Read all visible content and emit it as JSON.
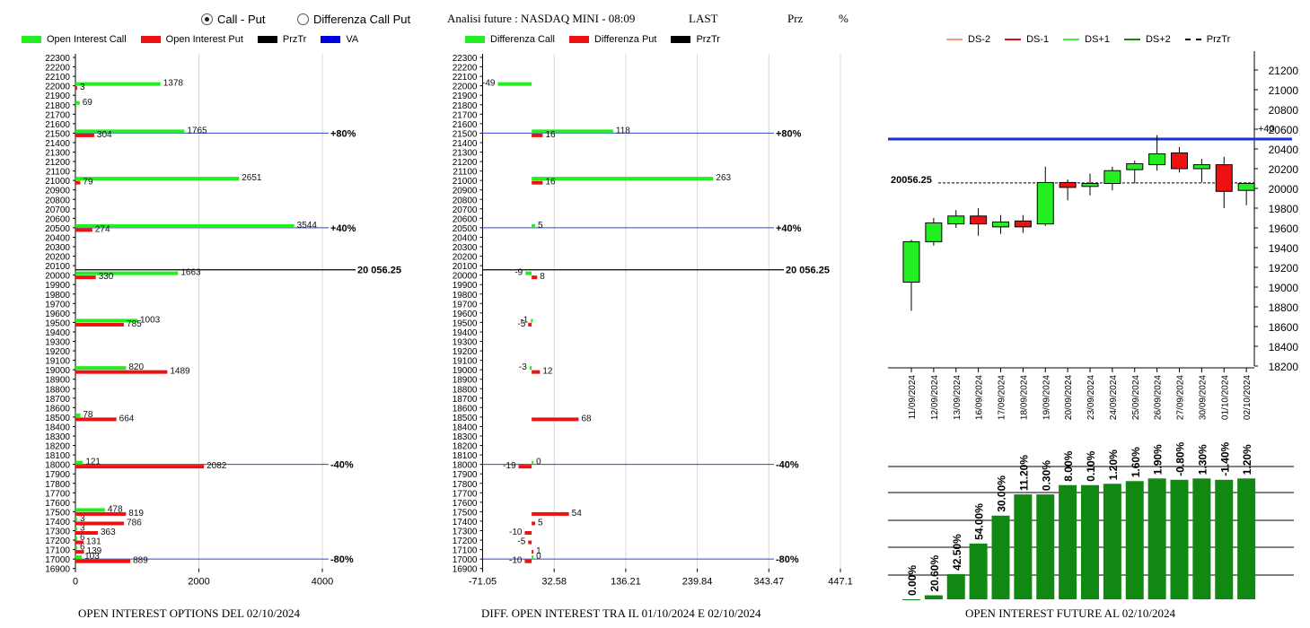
{
  "header": {
    "radio_call_put": "Call - Put",
    "radio_diff": "Differenza Call Put",
    "title": "Analisi future : NASDAQ MINI - 08:09",
    "last": "LAST",
    "prz": "Prz",
    "pct": "%"
  },
  "legend1": [
    {
      "label": "Open Interest Call",
      "color": "#22ee22"
    },
    {
      "label": "Open Interest Put",
      "color": "#ee1111"
    },
    {
      "label": "PrzTr",
      "color": "#000000"
    },
    {
      "label": "VA",
      "color": "#0000dd"
    }
  ],
  "legend2": [
    {
      "label": "Differenza Call",
      "color": "#22ee22"
    },
    {
      "label": "Differenza Put",
      "color": "#ee1111"
    },
    {
      "label": "PrzTr",
      "color": "#000000"
    }
  ],
  "legend3": [
    {
      "label": "DS-2",
      "color": "#f4a07a",
      "style": "solid"
    },
    {
      "label": "DS-1",
      "color": "#e01010",
      "style": "solid"
    },
    {
      "label": "DS+1",
      "color": "#44ee44",
      "style": "solid"
    },
    {
      "label": "DS+2",
      "color": "#118811",
      "style": "solid"
    },
    {
      "label": "PrzTr",
      "color": "#000000",
      "style": "dashed"
    }
  ],
  "captions": {
    "left": "OPEN INTEREST OPTIONS DEL 02/10/2024",
    "mid": "DIFF. OPEN INTEREST TRA IL 01/10/2024 E 02/10/2024",
    "right": "OPEN INTEREST FUTURE AL 02/10/2024"
  },
  "chart_data": [
    {
      "type": "bar",
      "orientation": "horizontal",
      "strike_ticks": [
        22300,
        22200,
        22100,
        22000,
        21900,
        21800,
        21700,
        21600,
        21500,
        21400,
        21300,
        21200,
        21100,
        21000,
        20900,
        20800,
        20700,
        20600,
        20500,
        20400,
        20300,
        20200,
        20100,
        20000,
        19900,
        19800,
        19700,
        19600,
        19500,
        19400,
        19300,
        19200,
        19100,
        19000,
        18900,
        18800,
        18700,
        18600,
        18500,
        18400,
        18300,
        18200,
        18100,
        18000,
        17900,
        17800,
        17700,
        17600,
        17500,
        17400,
        17300,
        17200,
        17100,
        17000,
        16900
      ],
      "x_ticks": [
        0,
        2000,
        4000
      ],
      "xlim": [
        0,
        4400
      ],
      "series": [
        {
          "name": "Open Interest Call",
          "color": "#22ee22",
          "points": [
            [
              22000,
              1378
            ],
            [
              21800,
              69
            ],
            [
              21500,
              1765
            ],
            [
              21000,
              2651
            ],
            [
              20500,
              3544
            ],
            [
              20000,
              1663
            ],
            [
              19500,
              1003
            ],
            [
              19000,
              820
            ],
            [
              18500,
              78
            ],
            [
              18000,
              121
            ],
            [
              17500,
              478
            ],
            [
              17400,
              3
            ],
            [
              17300,
              3
            ],
            [
              17200,
              6
            ],
            [
              17100,
              6
            ],
            [
              17000,
              103
            ]
          ]
        },
        {
          "name": "Open Interest Put",
          "color": "#ee1111",
          "points": [
            [
              22000,
              3
            ],
            [
              21500,
              304
            ],
            [
              21000,
              79
            ],
            [
              20500,
              274
            ],
            [
              20000,
              330
            ],
            [
              19500,
              785
            ],
            [
              19000,
              1489
            ],
            [
              18500,
              664
            ],
            [
              18000,
              2082
            ],
            [
              17500,
              819
            ],
            [
              17400,
              786
            ],
            [
              17300,
              363
            ],
            [
              17200,
              131
            ],
            [
              17100,
              139
            ],
            [
              17000,
              889
            ]
          ]
        }
      ],
      "lines": [
        {
          "level": 21500,
          "label": "+80%",
          "color": "#3344cc"
        },
        {
          "level": 20500,
          "label": "+40%",
          "color": "#3344cc"
        },
        {
          "level": 18000,
          "label": "-40%",
          "color": "#3344cc"
        },
        {
          "level": 17000,
          "label": "-80%",
          "color": "#3344cc"
        }
      ],
      "price_line": {
        "level": 20056.25,
        "label": "20 056.25"
      }
    },
    {
      "type": "bar",
      "orientation": "horizontal",
      "x_ticks": [
        "-71.05",
        "32.58",
        "136.21",
        "239.84",
        "343.47",
        "447.1"
      ],
      "xlim": [
        -71.05,
        447.1
      ],
      "series": [
        {
          "name": "Differenza Call",
          "color": "#22ee22",
          "points": [
            [
              22000,
              -49
            ],
            [
              21500,
              118
            ],
            [
              21000,
              263
            ],
            [
              20500,
              5
            ],
            [
              20000,
              -9
            ],
            [
              19500,
              -1
            ],
            [
              19000,
              -3
            ],
            [
              18000,
              0
            ],
            [
              17000,
              0
            ]
          ]
        },
        {
          "name": "Differenza Put",
          "color": "#ee1111",
          "points": [
            [
              21500,
              16
            ],
            [
              21000,
              16
            ],
            [
              20000,
              8
            ],
            [
              19500,
              -5
            ],
            [
              19000,
              12
            ],
            [
              18500,
              68
            ],
            [
              18000,
              -19
            ],
            [
              17500,
              54
            ],
            [
              17400,
              5
            ],
            [
              17300,
              -10
            ],
            [
              17200,
              -5
            ],
            [
              17100,
              1
            ],
            [
              17000,
              -10
            ]
          ]
        }
      ],
      "lines": [
        {
          "level": 21500,
          "label": "+80%"
        },
        {
          "level": 20500,
          "label": "+40%"
        },
        {
          "level": 18000,
          "label": "-40%"
        },
        {
          "level": 17000,
          "label": "-80%"
        }
      ],
      "price_line": {
        "level": 20056.25,
        "label": "20 056.25"
      }
    },
    {
      "type": "candlestick",
      "y_ticks": [
        21200,
        21000,
        20800,
        20600,
        20400,
        20200,
        20000,
        19800,
        19600,
        19400,
        19200,
        19000,
        18800,
        18600,
        18400,
        18200
      ],
      "ylim": [
        18200,
        21300
      ],
      "dates": [
        "11/09/2024",
        "12/09/2024",
        "13/09/2024",
        "16/09/2024",
        "17/09/2024",
        "18/09/2024",
        "19/09/2024",
        "20/09/2024",
        "23/09/2024",
        "24/09/2024",
        "25/09/2024",
        "26/09/2024",
        "27/09/2024",
        "30/09/2024",
        "01/10/2024",
        "02/10/2024"
      ],
      "ohlc": [
        [
          19050,
          19480,
          18760,
          19460
        ],
        [
          19460,
          19700,
          19420,
          19650
        ],
        [
          19640,
          19780,
          19600,
          19720
        ],
        [
          19720,
          19800,
          19520,
          19640
        ],
        [
          19610,
          19730,
          19540,
          19660
        ],
        [
          19670,
          19730,
          19550,
          19610
        ],
        [
          19640,
          20220,
          19620,
          20060
        ],
        [
          20060,
          20090,
          19880,
          20010
        ],
        [
          20020,
          20150,
          19930,
          20050
        ],
        [
          20050,
          20220,
          19980,
          20180
        ],
        [
          20190,
          20280,
          20050,
          20250
        ],
        [
          20240,
          20540,
          20180,
          20350
        ],
        [
          20360,
          20420,
          20160,
          20200
        ],
        [
          20200,
          20300,
          20060,
          20240
        ],
        [
          20240,
          20320,
          19800,
          19970
        ],
        [
          19980,
          20060,
          19830,
          20050
        ]
      ],
      "va_line": {
        "level": 20500,
        "label": "+40"
      },
      "price_line": {
        "level": 20056.25,
        "label": "20056.25"
      },
      "oi_pct": [
        "0.00%",
        "20.60%",
        "42.50%",
        "54.00%",
        "30.00%",
        "11.20%",
        "0.30%",
        "8.00%",
        "0.10%",
        "1.20%",
        "1.60%",
        "1.90%",
        "-0.80%",
        "1.30%",
        "-1.40%",
        "1.20%"
      ],
      "oi_level": [
        0,
        0.03,
        0.19,
        0.42,
        0.63,
        0.79,
        0.79,
        0.86,
        0.86,
        0.87,
        0.89,
        0.91,
        0.9,
        0.91,
        0.9,
        0.91
      ]
    }
  ]
}
